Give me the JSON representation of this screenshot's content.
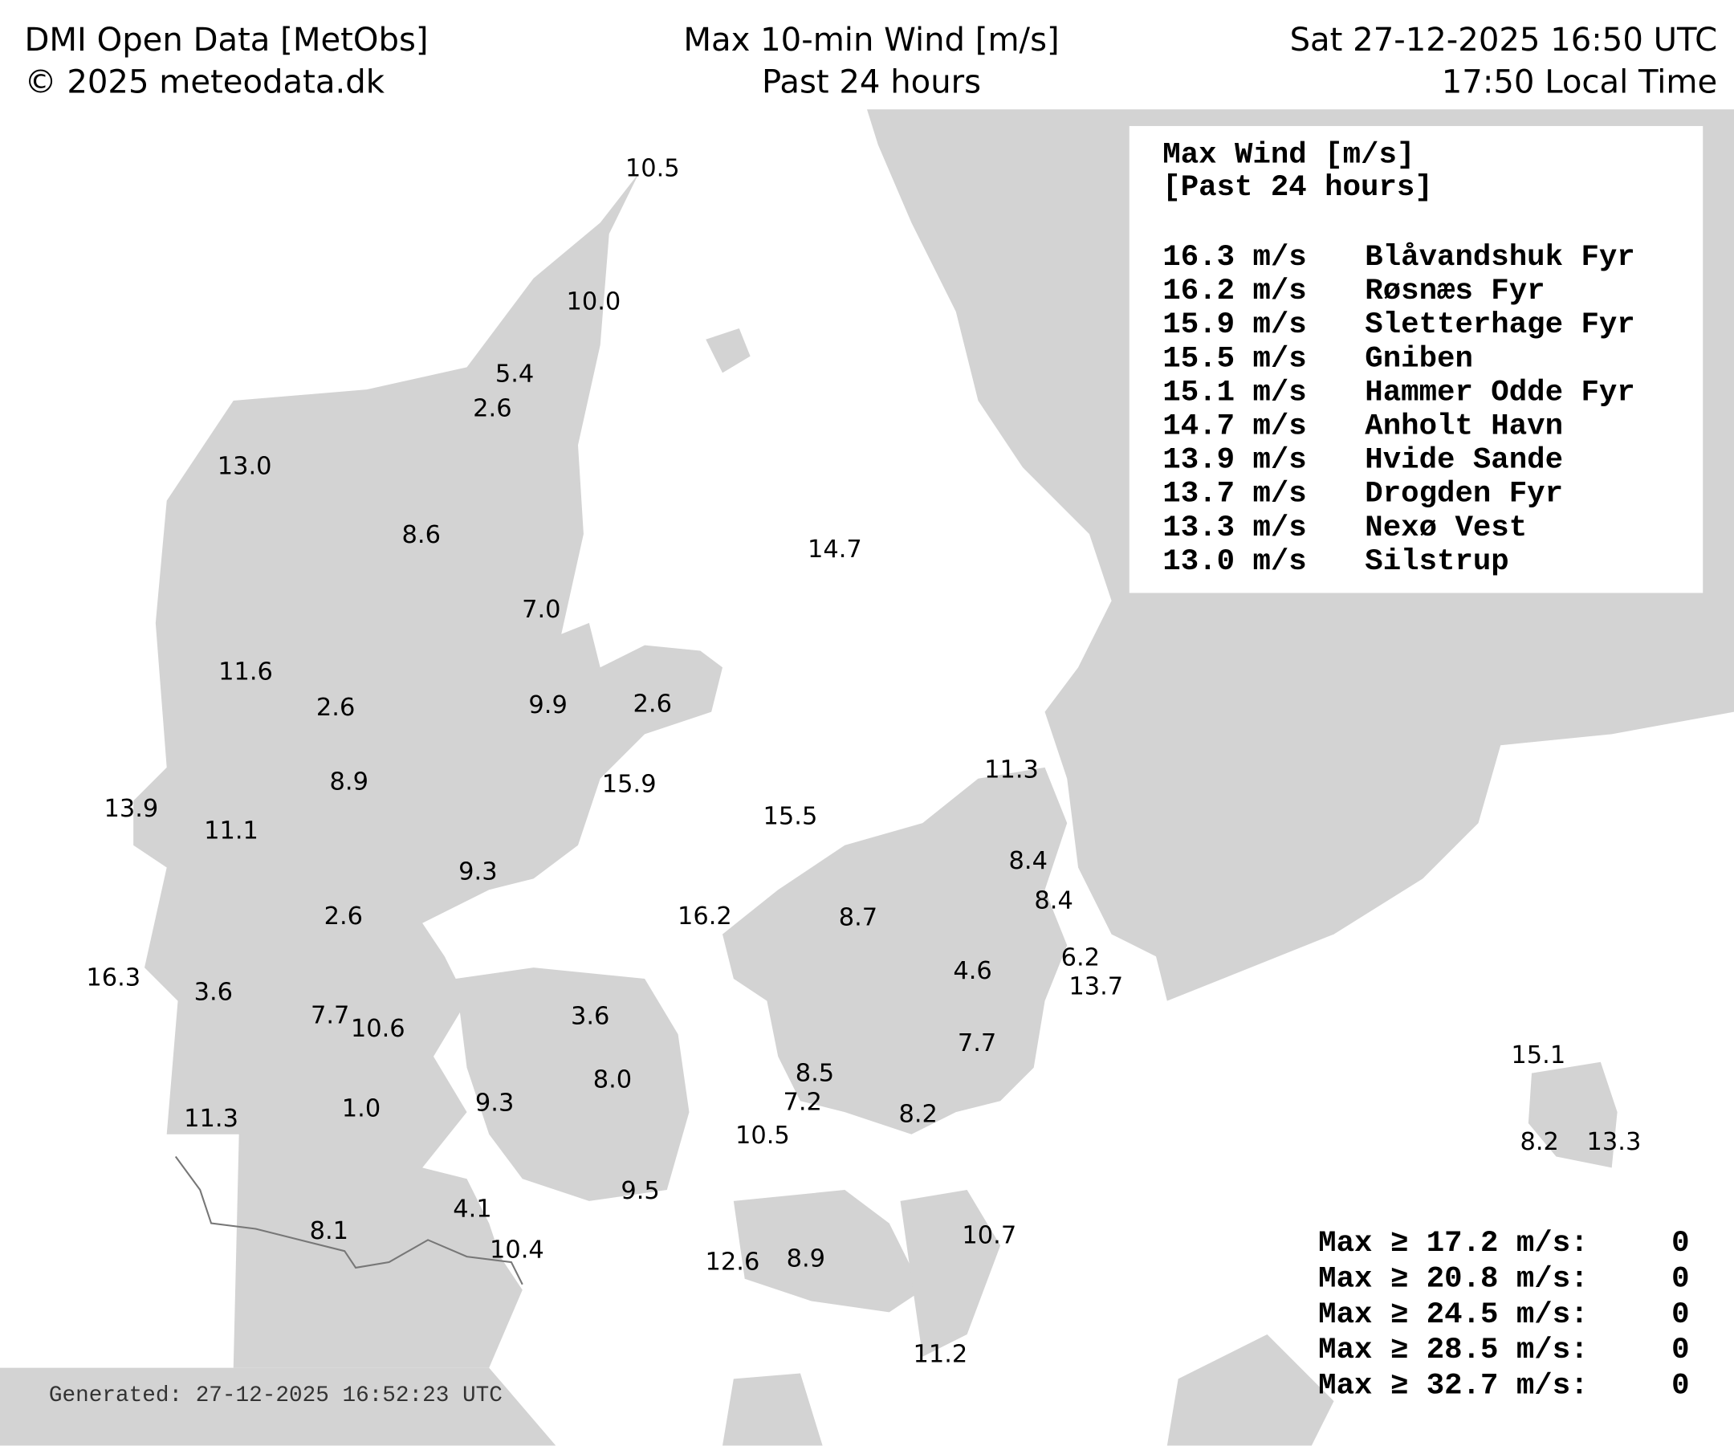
{
  "header": {
    "source": "DMI Open Data [MetObs]",
    "copyright": "© 2025 meteodata.dk",
    "title": "Max 10-min Wind [m/s]",
    "subtitle": "Past 24 hours",
    "time_utc": "Sat 27-12-2025 16:50 UTC",
    "time_local": "17:50 Local Time"
  },
  "stations": [
    "10.5",
    "10.0",
    "5.4",
    "2.6",
    "13.0",
    "8.6",
    "14.7",
    "7.0",
    "11.6",
    "2.6",
    "9.9",
    "2.6",
    "11.3",
    "8.9",
    "15.9",
    "15.5",
    "13.9",
    "11.1",
    "8.4",
    "9.3",
    "8.4",
    "2.6",
    "16.2",
    "8.7",
    "6.2",
    "4.6",
    "16.3",
    "13.7",
    "3.6",
    "7.7",
    "10.6",
    "3.6",
    "7.7",
    "15.1",
    "8.5",
    "8.0",
    "7.2",
    "9.3",
    "1.0",
    "11.3",
    "8.2",
    "10.5",
    "8.2",
    "13.3",
    "9.5",
    "4.1",
    "8.1",
    "10.7",
    "10.4",
    "12.6",
    "8.9",
    "11.2"
  ],
  "legend": {
    "title": "Max Wind [m/s]",
    "subtitle": "[Past 24 hours]",
    "rows": [
      {
        "wind": "16.3 m/s",
        "station": "Blåvandshuk Fyr"
      },
      {
        "wind": "16.2 m/s",
        "station": "Røsnæs Fyr"
      },
      {
        "wind": "15.9 m/s",
        "station": "Sletterhage Fyr"
      },
      {
        "wind": "15.5 m/s",
        "station": "Gniben"
      },
      {
        "wind": "15.1 m/s",
        "station": "Hammer Odde Fyr"
      },
      {
        "wind": "14.7 m/s",
        "station": "Anholt Havn"
      },
      {
        "wind": "13.9 m/s",
        "station": "Hvide Sande"
      },
      {
        "wind": "13.7 m/s",
        "station": "Drogden Fyr"
      },
      {
        "wind": "13.3 m/s",
        "station": "Nexø Vest"
      },
      {
        "wind": "13.0 m/s",
        "station": "Silstrup"
      }
    ]
  },
  "thresholds": [
    {
      "label": "Max ≥ 17.2 m/s:",
      "count": "0"
    },
    {
      "label": "Max ≥ 20.8 m/s:",
      "count": "0"
    },
    {
      "label": "Max ≥ 24.5 m/s:",
      "count": "0"
    },
    {
      "label": "Max ≥ 28.5 m/s:",
      "count": "0"
    },
    {
      "label": "Max ≥ 32.7 m/s:",
      "count": "0"
    }
  ],
  "generated": "Generated: 27-12-2025 16:52:23 UTC"
}
